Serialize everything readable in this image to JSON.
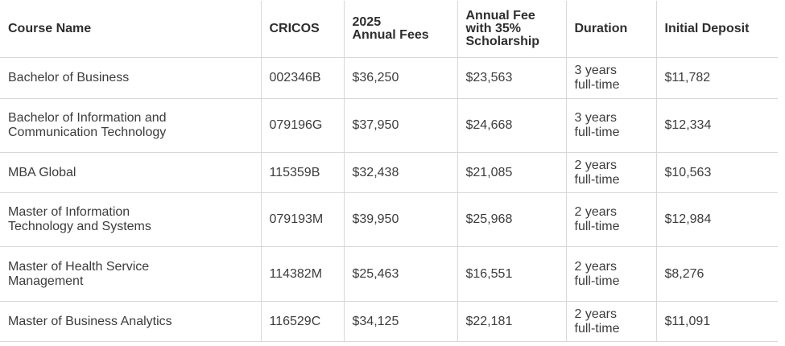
{
  "headers": {
    "course_name": "Course Name",
    "cricos": "CRICOS",
    "annual_fees_line1": "2025",
    "annual_fees_line2": "Annual Fees",
    "scholarship_line1": "Annual Fee",
    "scholarship_line2": "with 35%",
    "scholarship_line3": "Scholarship",
    "duration": "Duration",
    "initial_deposit": "Initial Deposit"
  },
  "rows": [
    {
      "course_line1": "Bachelor of Business",
      "course_line2": "",
      "cricos": "002346B",
      "annual_fees": "$36,250",
      "scholarship_fee": "$23,563",
      "duration_line1": "3 years",
      "duration_line2": "full-time",
      "initial_deposit": "$11,782"
    },
    {
      "course_line1": "Bachelor of Information and",
      "course_line2": "Communication Technology",
      "cricos": "079196G",
      "annual_fees": "$37,950",
      "scholarship_fee": "$24,668",
      "duration_line1": "3 years",
      "duration_line2": "full-time",
      "initial_deposit": "$12,334"
    },
    {
      "course_line1": "MBA Global",
      "course_line2": "",
      "cricos": "115359B",
      "annual_fees": "$32,438",
      "scholarship_fee": "$21,085",
      "duration_line1": "2 years",
      "duration_line2": "full-time",
      "initial_deposit": "$10,563"
    },
    {
      "course_line1": "Master of Information",
      "course_line2": "Technology and Systems",
      "cricos": "079193M",
      "annual_fees": "$39,950",
      "scholarship_fee": "$25,968",
      "duration_line1": "2 years",
      "duration_line2": "full-time",
      "initial_deposit": "$12,984"
    },
    {
      "course_line1": "Master of Health Service",
      "course_line2": "Management",
      "cricos": "114382M",
      "annual_fees": "$25,463",
      "scholarship_fee": "$16,551",
      "duration_line1": "2 years",
      "duration_line2": "full-time",
      "initial_deposit": "$8,276"
    },
    {
      "course_line1": "Master of Business Analytics",
      "course_line2": "",
      "cricos": "116529C",
      "annual_fees": "$34,125",
      "scholarship_fee": "$22,181",
      "duration_line1": "2 years",
      "duration_line2": "full-time",
      "initial_deposit": "$11,091"
    }
  ]
}
